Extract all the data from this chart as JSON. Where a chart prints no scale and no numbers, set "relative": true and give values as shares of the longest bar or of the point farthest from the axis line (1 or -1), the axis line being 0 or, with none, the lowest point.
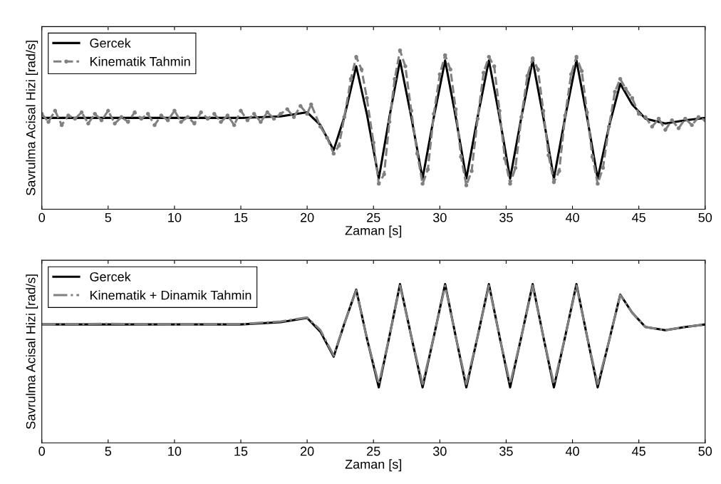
{
  "chart_data": [
    {
      "type": "line",
      "relative": true,
      "xlabel": "Zaman [s]",
      "ylabel": "Savrulma Acisal Hizi [rad/s]",
      "xlim": [
        0,
        50
      ],
      "xticks": [
        0,
        5,
        10,
        15,
        20,
        25,
        30,
        35,
        40,
        45,
        50
      ],
      "grid": false,
      "legend": "top left",
      "series": [
        {
          "name": "Gercek",
          "color": "#000000",
          "line_style": "solid",
          "marker": "none",
          "x": [
            0,
            5,
            10,
            15,
            18,
            20,
            21,
            22,
            22.8,
            23.7,
            24.5,
            25.4,
            26.2,
            27.0,
            27.85,
            28.7,
            29.55,
            30.4,
            31.2,
            32.0,
            32.85,
            33.7,
            34.5,
            35.3,
            36.15,
            37.0,
            37.8,
            38.6,
            39.45,
            40.3,
            41.1,
            41.9,
            42.75,
            43.6,
            44.5,
            45.5,
            47,
            48.5,
            50
          ],
          "values": [
            0.575,
            0.575,
            0.575,
            0.575,
            0.585,
            0.61,
            0.53,
            0.372,
            0.58,
            0.9,
            0.6,
            0.193,
            0.58,
            0.937,
            0.58,
            0.193,
            0.58,
            0.937,
            0.58,
            0.193,
            0.58,
            0.937,
            0.58,
            0.193,
            0.58,
            0.937,
            0.58,
            0.193,
            0.58,
            0.937,
            0.58,
            0.193,
            0.52,
            0.79,
            0.66,
            0.57,
            0.54,
            0.56,
            0.575
          ]
        },
        {
          "name": "Kinematik Tahmin",
          "color": "#808080",
          "line_style": "dashed",
          "marker": "circle",
          "x": [
            0,
            0.5,
            1,
            1.5,
            2,
            2.5,
            3,
            3.5,
            4,
            4.5,
            5,
            5.5,
            6,
            6.5,
            7,
            7.5,
            8,
            8.5,
            9,
            9.5,
            10,
            10.5,
            11,
            11.5,
            12,
            12.5,
            13,
            13.5,
            14,
            14.5,
            15,
            15.5,
            16,
            16.5,
            17,
            17.5,
            18,
            18.5,
            19,
            19.5,
            20,
            20.3,
            21,
            21.5,
            22,
            22.4,
            22.8,
            23.3,
            23.7,
            24.1,
            24.5,
            25,
            25.4,
            25.8,
            26.2,
            26.6,
            27.0,
            27.4,
            27.85,
            28.3,
            28.7,
            29.1,
            29.55,
            30.0,
            30.4,
            30.8,
            31.2,
            31.6,
            32.0,
            32.4,
            32.85,
            33.3,
            33.7,
            34.1,
            34.5,
            34.9,
            35.3,
            35.7,
            36.15,
            36.6,
            37.0,
            37.4,
            37.8,
            38.2,
            38.6,
            39.0,
            39.45,
            39.9,
            40.3,
            40.7,
            41.1,
            41.5,
            41.9,
            42.3,
            42.75,
            43.2,
            43.6,
            44.0,
            44.5,
            45.0,
            45.5,
            46.0,
            46.5,
            47.0,
            47.5,
            48.0,
            48.5,
            49.0,
            49.5,
            50.0
          ],
          "values": [
            0.6,
            0.55,
            0.62,
            0.53,
            0.59,
            0.57,
            0.61,
            0.54,
            0.6,
            0.56,
            0.62,
            0.54,
            0.58,
            0.55,
            0.61,
            0.57,
            0.6,
            0.53,
            0.59,
            0.56,
            0.62,
            0.55,
            0.58,
            0.54,
            0.61,
            0.57,
            0.6,
            0.55,
            0.59,
            0.53,
            0.62,
            0.56,
            0.6,
            0.55,
            0.61,
            0.57,
            0.6,
            0.63,
            0.58,
            0.65,
            0.6,
            0.66,
            0.52,
            0.45,
            0.35,
            0.4,
            0.58,
            0.82,
            0.96,
            0.88,
            0.7,
            0.42,
            0.16,
            0.22,
            0.55,
            0.82,
            1.0,
            0.9,
            0.62,
            0.35,
            0.16,
            0.25,
            0.6,
            0.85,
            0.97,
            0.88,
            0.63,
            0.33,
            0.15,
            0.24,
            0.57,
            0.86,
            0.96,
            0.9,
            0.62,
            0.32,
            0.16,
            0.26,
            0.58,
            0.84,
            0.95,
            0.88,
            0.62,
            0.34,
            0.17,
            0.24,
            0.59,
            0.85,
            0.96,
            0.87,
            0.61,
            0.33,
            0.16,
            0.26,
            0.52,
            0.74,
            0.82,
            0.76,
            0.7,
            0.6,
            0.58,
            0.52,
            0.57,
            0.5,
            0.56,
            0.51,
            0.57,
            0.53,
            0.58,
            0.56
          ]
        }
      ]
    },
    {
      "type": "line",
      "relative": true,
      "xlabel": "Zaman [s]",
      "ylabel": "Savrulma Acisal Hizi [rad/s]",
      "xlim": [
        0,
        50
      ],
      "xticks": [
        0,
        5,
        10,
        15,
        20,
        25,
        30,
        35,
        40,
        45,
        50
      ],
      "grid": false,
      "legend": "top left",
      "series": [
        {
          "name": "Gercek",
          "color": "#000000",
          "line_style": "solid",
          "marker": "none",
          "x": [
            0,
            5,
            10,
            15,
            18,
            20,
            21,
            22,
            22.8,
            23.7,
            24.5,
            25.4,
            26.2,
            27.0,
            27.85,
            28.7,
            29.55,
            30.4,
            31.2,
            32.0,
            32.85,
            33.7,
            34.5,
            35.3,
            36.15,
            37.0,
            37.8,
            38.6,
            39.45,
            40.3,
            41.1,
            41.9,
            42.75,
            43.6,
            44.5,
            45.5,
            47,
            48.5,
            50
          ],
          "values": [
            0.746,
            0.746,
            0.746,
            0.746,
            0.76,
            0.787,
            0.7,
            0.543,
            0.75,
            0.965,
            0.66,
            0.35,
            0.67,
            1.0,
            0.67,
            0.35,
            0.67,
            1.0,
            0.67,
            0.35,
            0.67,
            1.0,
            0.67,
            0.35,
            0.67,
            1.0,
            0.67,
            0.35,
            0.67,
            1.0,
            0.67,
            0.35,
            0.64,
            0.934,
            0.82,
            0.73,
            0.71,
            0.73,
            0.746
          ]
        },
        {
          "name": "Kinematik + Dinamik Tahmin",
          "color": "#808080",
          "line_style": "dashdot",
          "marker": "none",
          "x": [
            0,
            5,
            10,
            15,
            18,
            20,
            21,
            22,
            22.8,
            23.7,
            24.5,
            25.4,
            26.2,
            27.0,
            27.85,
            28.7,
            29.55,
            30.4,
            31.2,
            32.0,
            32.85,
            33.7,
            34.5,
            35.3,
            36.15,
            37.0,
            37.8,
            38.6,
            39.45,
            40.3,
            41.1,
            41.9,
            42.75,
            43.6,
            44.5,
            45.5,
            47,
            48.5,
            50
          ],
          "values": [
            0.746,
            0.75,
            0.745,
            0.748,
            0.765,
            0.79,
            0.71,
            0.55,
            0.75,
            0.96,
            0.66,
            0.37,
            0.67,
            0.99,
            0.67,
            0.37,
            0.67,
            0.99,
            0.67,
            0.37,
            0.67,
            0.99,
            0.67,
            0.37,
            0.67,
            0.99,
            0.67,
            0.37,
            0.67,
            0.99,
            0.67,
            0.37,
            0.64,
            0.93,
            0.82,
            0.73,
            0.71,
            0.73,
            0.746
          ]
        }
      ]
    }
  ]
}
